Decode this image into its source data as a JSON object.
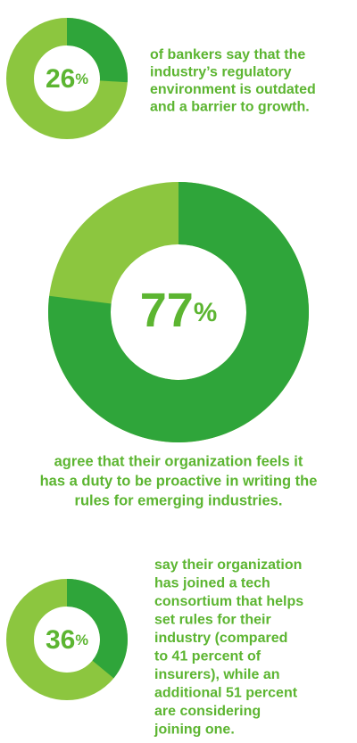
{
  "chart_data": [
    {
      "type": "donut",
      "values": [
        26
      ],
      "value_labels": [
        "26%"
      ],
      "color": "#2fa53a",
      "track_color": "#8cc63f",
      "text_lines": [
        "of bankers say that the",
        "industry’s regulatory",
        "environment is outdated",
        "and a barrier to growth."
      ]
    },
    {
      "type": "donut",
      "values": [
        77
      ],
      "value_labels": [
        "77%"
      ],
      "color": "#2fa53a",
      "track_color": "#8cc63f",
      "text_lines": [
        "agree that their organization feels it",
        "has a duty to be proactive in writing the",
        "rules for emerging industries."
      ]
    },
    {
      "type": "donut",
      "values": [
        36
      ],
      "value_labels": [
        "36%"
      ],
      "color": "#2fa53a",
      "track_color": "#8cc63f",
      "text_lines": [
        "say their organization",
        "has joined a tech",
        "consortium that helps",
        "set rules for their",
        "industry (compared",
        "to 41 percent of",
        "insurers), while an",
        "additional 51 percent",
        "are considering",
        "joining one."
      ]
    }
  ]
}
